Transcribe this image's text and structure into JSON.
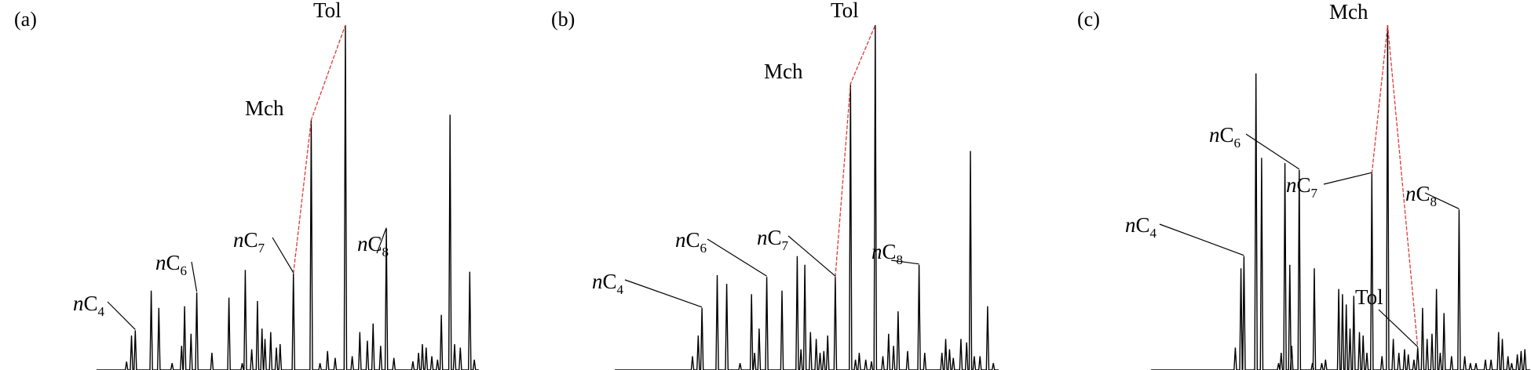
{
  "colors": {
    "trace": "#000000",
    "connector": "#e03a3a",
    "background": "#ffffff"
  },
  "chart_data": [
    {
      "type": "line",
      "panel_label": "(a)",
      "xlim": [
        0,
        100
      ],
      "ylim": [
        0,
        100
      ],
      "peaks": [
        {
          "x": 7.5,
          "h": 2.4
        },
        {
          "x": 8.8,
          "h": 10
        },
        {
          "x": 9.8,
          "h": 11.5
        },
        {
          "x": 14.0,
          "h": 23
        },
        {
          "x": 16.0,
          "h": 18
        },
        {
          "x": 19.5,
          "h": 2
        },
        {
          "x": 22.0,
          "h": 7
        },
        {
          "x": 22.8,
          "h": 18.5
        },
        {
          "x": 24.5,
          "h": 10.5
        },
        {
          "x": 26.0,
          "h": 22.5
        },
        {
          "x": 30.0,
          "h": 5
        },
        {
          "x": 34.5,
          "h": 21
        },
        {
          "x": 38.0,
          "h": 2
        },
        {
          "x": 38.8,
          "h": 29
        },
        {
          "x": 40.5,
          "h": 6
        },
        {
          "x": 42.0,
          "h": 20
        },
        {
          "x": 43.2,
          "h": 12
        },
        {
          "x": 44.0,
          "h": 9
        },
        {
          "x": 45.5,
          "h": 11
        },
        {
          "x": 47.0,
          "h": 6.5
        },
        {
          "x": 48.0,
          "h": 7.5
        },
        {
          "x": 51.5,
          "h": 28
        },
        {
          "x": 56.2,
          "h": 72.5
        },
        {
          "x": 58.5,
          "h": 2
        },
        {
          "x": 60.5,
          "h": 5.5
        },
        {
          "x": 62.5,
          "h": 3.5
        },
        {
          "x": 65.2,
          "h": 100
        },
        {
          "x": 67.0,
          "h": 4
        },
        {
          "x": 69.0,
          "h": 11
        },
        {
          "x": 71.0,
          "h": 8.5
        },
        {
          "x": 72.5,
          "h": 13.5
        },
        {
          "x": 74.5,
          "h": 7
        },
        {
          "x": 76.0,
          "h": 41
        },
        {
          "x": 78.0,
          "h": 3.5
        },
        {
          "x": 83.0,
          "h": 2.5
        },
        {
          "x": 84.5,
          "h": 5
        },
        {
          "x": 85.5,
          "h": 7.5
        },
        {
          "x": 86.5,
          "h": 6.5
        },
        {
          "x": 88.0,
          "h": 4
        },
        {
          "x": 89.5,
          "h": 3
        },
        {
          "x": 90.5,
          "h": 16
        },
        {
          "x": 92.8,
          "h": 74
        },
        {
          "x": 94.0,
          "h": 7.5
        },
        {
          "x": 95.5,
          "h": 6.5
        },
        {
          "x": 98.0,
          "h": 28.5
        },
        {
          "x": 99.2,
          "h": 3
        }
      ],
      "annotations": [
        {
          "base": "n",
          "element": "C",
          "sub": "4",
          "peak_x": 9.8
        },
        {
          "base": "n",
          "element": "C",
          "sub": "6",
          "peak_x": 26.0
        },
        {
          "base": "n",
          "element": "C",
          "sub": "7",
          "peak_x": 51.5
        },
        {
          "base": "n",
          "element": "C",
          "sub": "8",
          "peak_x": 76.0
        },
        {
          "base": "",
          "element": "Mch",
          "sub": "",
          "peak_x": 56.2
        },
        {
          "base": "",
          "element": "Tol",
          "sub": "",
          "peak_x": 65.2
        }
      ],
      "connector_x": [
        51.5,
        56.2,
        65.2
      ]
    },
    {
      "type": "line",
      "panel_label": "(b)",
      "xlim": [
        0,
        100
      ],
      "ylim": [
        0,
        100
      ],
      "peaks": [
        {
          "x": 20.0,
          "h": 4
        },
        {
          "x": 21.5,
          "h": 10
        },
        {
          "x": 22.5,
          "h": 18
        },
        {
          "x": 26.5,
          "h": 27.5
        },
        {
          "x": 29.0,
          "h": 25
        },
        {
          "x": 32.5,
          "h": 2
        },
        {
          "x": 35.5,
          "h": 22
        },
        {
          "x": 36.3,
          "h": 5
        },
        {
          "x": 37.5,
          "h": 12
        },
        {
          "x": 39.5,
          "h": 27
        },
        {
          "x": 43.5,
          "h": 23
        },
        {
          "x": 47.5,
          "h": 33
        },
        {
          "x": 48.5,
          "h": 6
        },
        {
          "x": 49.5,
          "h": 30.5
        },
        {
          "x": 51.0,
          "h": 11
        },
        {
          "x": 52.5,
          "h": 9
        },
        {
          "x": 53.5,
          "h": 5
        },
        {
          "x": 54.5,
          "h": 5.5
        },
        {
          "x": 55.5,
          "h": 10
        },
        {
          "x": 57.5,
          "h": 27
        },
        {
          "x": 61.5,
          "h": 83
        },
        {
          "x": 62.8,
          "h": 3
        },
        {
          "x": 63.8,
          "h": 5
        },
        {
          "x": 65.5,
          "h": 3
        },
        {
          "x": 67.0,
          "h": 2.5
        },
        {
          "x": 68.0,
          "h": 100
        },
        {
          "x": 70.0,
          "h": 4
        },
        {
          "x": 71.5,
          "h": 10.5
        },
        {
          "x": 72.8,
          "h": 7
        },
        {
          "x": 74.0,
          "h": 17
        },
        {
          "x": 76.5,
          "h": 5.5
        },
        {
          "x": 79.5,
          "h": 30.5
        },
        {
          "x": 81.0,
          "h": 5
        },
        {
          "x": 85.5,
          "h": 5
        },
        {
          "x": 86.5,
          "h": 9
        },
        {
          "x": 87.5,
          "h": 6
        },
        {
          "x": 88.5,
          "h": 3.5
        },
        {
          "x": 90.5,
          "h": 9
        },
        {
          "x": 92.0,
          "h": 8
        },
        {
          "x": 93.0,
          "h": 63.5
        },
        {
          "x": 94.0,
          "h": 4
        },
        {
          "x": 95.5,
          "h": 4
        },
        {
          "x": 97.5,
          "h": 18.5
        },
        {
          "x": 99.0,
          "h": 2
        }
      ],
      "annotations": [
        {
          "base": "n",
          "element": "C",
          "sub": "4",
          "peak_x": 22.5
        },
        {
          "base": "n",
          "element": "C",
          "sub": "6",
          "peak_x": 39.5
        },
        {
          "base": "n",
          "element": "C",
          "sub": "7",
          "peak_x": 57.5
        },
        {
          "base": "n",
          "element": "C",
          "sub": "8",
          "peak_x": 79.5
        },
        {
          "base": "",
          "element": "Mch",
          "sub": "",
          "peak_x": 61.5
        },
        {
          "base": "",
          "element": "Tol",
          "sub": "",
          "peak_x": 68.0
        }
      ],
      "connector_x": [
        57.5,
        61.5,
        68.0
      ]
    },
    {
      "type": "line",
      "panel_label": "(c)",
      "xlim": [
        0,
        100
      ],
      "ylim": [
        0,
        100
      ],
      "peaks": [
        {
          "x": 22.0,
          "h": 6.5
        },
        {
          "x": 23.5,
          "h": 29.5
        },
        {
          "x": 24.3,
          "h": 33
        },
        {
          "x": 27.5,
          "h": 86
        },
        {
          "x": 29.0,
          "h": 61.5
        },
        {
          "x": 33.5,
          "h": 2
        },
        {
          "x": 34.2,
          "h": 5
        },
        {
          "x": 35.2,
          "h": 60
        },
        {
          "x": 36.5,
          "h": 30.5
        },
        {
          "x": 37.0,
          "h": 7
        },
        {
          "x": 39.0,
          "h": 58
        },
        {
          "x": 42.5,
          "h": 2
        },
        {
          "x": 43.0,
          "h": 29.5
        },
        {
          "x": 45.0,
          "h": 2
        },
        {
          "x": 46.0,
          "h": 3
        },
        {
          "x": 49.5,
          "h": 23.5
        },
        {
          "x": 50.5,
          "h": 22
        },
        {
          "x": 51.5,
          "h": 19
        },
        {
          "x": 52.5,
          "h": 12
        },
        {
          "x": 53.5,
          "h": 21.5
        },
        {
          "x": 55.0,
          "h": 11
        },
        {
          "x": 56.0,
          "h": 10
        },
        {
          "x": 57.0,
          "h": 5
        },
        {
          "x": 58.3,
          "h": 57
        },
        {
          "x": 61.0,
          "h": 4
        },
        {
          "x": 62.5,
          "h": 100
        },
        {
          "x": 64.0,
          "h": 9
        },
        {
          "x": 65.5,
          "h": 5
        },
        {
          "x": 67.0,
          "h": 6
        },
        {
          "x": 68.0,
          "h": 4.5
        },
        {
          "x": 69.5,
          "h": 3
        },
        {
          "x": 70.5,
          "h": 6.5
        },
        {
          "x": 71.8,
          "h": 18
        },
        {
          "x": 73.0,
          "h": 9
        },
        {
          "x": 74.3,
          "h": 10.5
        },
        {
          "x": 75.5,
          "h": 23.5
        },
        {
          "x": 76.5,
          "h": 5
        },
        {
          "x": 77.5,
          "h": 16.5
        },
        {
          "x": 79.5,
          "h": 4
        },
        {
          "x": 81.5,
          "h": 46.5
        },
        {
          "x": 83.0,
          "h": 4
        },
        {
          "x": 84.5,
          "h": 2
        },
        {
          "x": 86.0,
          "h": 2
        },
        {
          "x": 88.5,
          "h": 3
        },
        {
          "x": 90.0,
          "h": 3
        },
        {
          "x": 92.0,
          "h": 11
        },
        {
          "x": 93.0,
          "h": 9
        },
        {
          "x": 94.5,
          "h": 4
        },
        {
          "x": 95.5,
          "h": 2
        },
        {
          "x": 97.0,
          "h": 4.5
        },
        {
          "x": 98.0,
          "h": 5.5
        },
        {
          "x": 99.0,
          "h": 6
        }
      ],
      "annotations": [
        {
          "base": "n",
          "element": "C",
          "sub": "4",
          "peak_x": 24.3
        },
        {
          "base": "n",
          "element": "C",
          "sub": "6",
          "peak_x": 39.0
        },
        {
          "base": "n",
          "element": "C",
          "sub": "7",
          "peak_x": 58.3
        },
        {
          "base": "n",
          "element": "C",
          "sub": "8",
          "peak_x": 81.5
        },
        {
          "base": "",
          "element": "Mch",
          "sub": "",
          "peak_x": 62.5
        },
        {
          "base": "",
          "element": "Tol",
          "sub": "",
          "peak_x": 70.5
        }
      ],
      "connector_x": [
        58.3,
        62.5,
        70.5
      ]
    }
  ]
}
